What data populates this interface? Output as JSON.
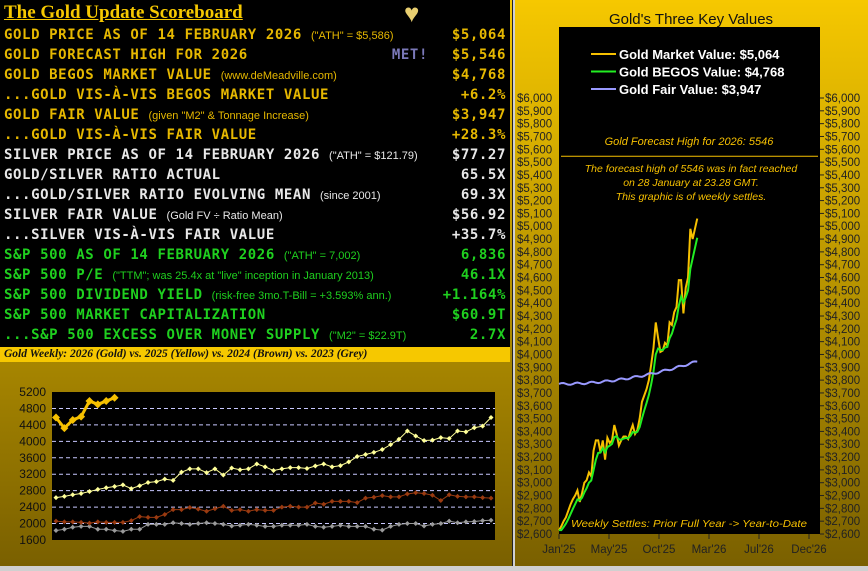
{
  "scoreboard": {
    "title": "The Gold Update Scoreboard",
    "heart_icon": "gold-heart-icon",
    "rows": [
      {
        "label": "GOLD PRICE AS OF 14 FEBRUARY 2026",
        "note": "(\"ATH\" = $5,586)",
        "value": "$5,064",
        "color": "gold"
      },
      {
        "label": "GOLD FORECAST HIGH FOR 2026",
        "note": "",
        "badge": "MET!",
        "value": "$5,546",
        "color": "gold"
      },
      {
        "label": "GOLD BEGOS MARKET VALUE",
        "note": "(www.deMeadville.com)",
        "value": "$4,768",
        "color": "gold",
        "link": true
      },
      {
        "label": "...GOLD VIS-À-VIS BEGOS MARKET VALUE",
        "note": "",
        "value": "+6.2%",
        "color": "gold"
      },
      {
        "label": "GOLD FAIR VALUE",
        "note": "(given \"M2\" & Tonnage Increase)",
        "value": "$3,947",
        "color": "gold"
      },
      {
        "label": "...GOLD VIS-À-VIS FAIR VALUE",
        "note": "",
        "value": "+28.3%",
        "color": "gold"
      },
      {
        "label": "SILVER PRICE AS OF 14 FEBRUARY 2026",
        "note": "(\"ATH\" = $121.79)",
        "value": "$77.27",
        "color": "white"
      },
      {
        "label": "GOLD/SILVER RATIO ACTUAL",
        "note": "",
        "value": "65.5X",
        "color": "white"
      },
      {
        "label": "...GOLD/SILVER RATIO EVOLVING MEAN",
        "note": "(since 2001)",
        "value": "69.3X",
        "color": "white"
      },
      {
        "label": "SILVER FAIR VALUE",
        "note": "(Gold FV ÷ Ratio Mean)",
        "value": "$56.92",
        "color": "white"
      },
      {
        "label": "...SILVER VIS-À-VIS FAIR VALUE",
        "note": "",
        "value": "+35.7%",
        "color": "white"
      },
      {
        "label": "S&P 500 AS OF 14 FEBRUARY 2026",
        "note": "(\"ATH\" = 7,002)",
        "value": "6,836",
        "color": "green"
      },
      {
        "label": "S&P 500 P/E",
        "note": "(\"TTM\"; was 25.4x at \"live\" inception in January 2013)",
        "value": "46.1X",
        "color": "green"
      },
      {
        "label": "S&P 500 DIVIDEND YIELD",
        "note": "(risk-free 3mo.T-Bill = +3.593% ann.)",
        "value": "+1.164%",
        "color": "green"
      },
      {
        "label": "S&P 500 MARKET CAPITALIZATION",
        "note": "",
        "value": "$60.9T",
        "color": "green"
      },
      {
        "label": "...S&P 500 EXCESS OVER MONEY SUPPLY",
        "note": "(\"M2\" = $22.9T)",
        "value": "2.7X",
        "color": "green"
      }
    ]
  },
  "weekly_title": "Gold Weekly:  2026 (Gold) vs. 2025 (Yellow) vs. 2024 (Brown) vs. 2023 (Grey)",
  "chart_data": [
    {
      "type": "line",
      "ylim": [
        1600,
        5200
      ],
      "yticks": [
        1600,
        2000,
        2400,
        2800,
        3200,
        3600,
        4000,
        4400,
        4800,
        5200
      ],
      "grid": true,
      "series": [
        {
          "year": "2026",
          "color": "#f6c000",
          "values": [
            4580,
            4320,
            4520,
            4600,
            4980,
            4900,
            4980,
            5060
          ]
        },
        {
          "year": "2025",
          "color": "#ffff99",
          "values": [
            2630,
            2660,
            2700,
            2730,
            2780,
            2830,
            2870,
            2900,
            2940,
            2850,
            2920,
            3000,
            3020,
            3080,
            3050,
            3250,
            3330,
            3330,
            3240,
            3330,
            3180,
            3350,
            3310,
            3330,
            3450,
            3380,
            3290,
            3330,
            3360,
            3360,
            3340,
            3400,
            3450,
            3380,
            3410,
            3500,
            3630,
            3680,
            3730,
            3800,
            3920,
            4050,
            4250,
            4130,
            4020,
            4030,
            4090,
            4070,
            4250,
            4230,
            4330,
            4370,
            4580
          ]
        },
        {
          "year": "2024",
          "color": "#9a3a10",
          "values": [
            2060,
            2040,
            2040,
            2030,
            2010,
            2040,
            2030,
            2030,
            2030,
            2070,
            2170,
            2150,
            2150,
            2220,
            2340,
            2340,
            2390,
            2350,
            2300,
            2360,
            2420,
            2320,
            2340,
            2300,
            2340,
            2320,
            2320,
            2400,
            2420,
            2400,
            2400,
            2500,
            2470,
            2540,
            2540,
            2540,
            2510,
            2620,
            2640,
            2680,
            2650,
            2650,
            2720,
            2750,
            2730,
            2690,
            2560,
            2700,
            2660,
            2650,
            2650,
            2630,
            2620
          ]
        },
        {
          "year": "2023",
          "color": "#9a9a9a",
          "values": [
            1830,
            1860,
            1910,
            1930,
            1930,
            1860,
            1860,
            1830,
            1810,
            1860,
            1860,
            1980,
            1980,
            1980,
            2020,
            2000,
            1980,
            2000,
            2020,
            2000,
            1980,
            1940,
            1960,
            1980,
            1960,
            1930,
            1930,
            1960,
            1960,
            1960,
            1980,
            1930,
            1910,
            1930,
            1960,
            1930,
            1930,
            1930,
            1860,
            1840,
            1930,
            1980,
            2000,
            2000,
            1940,
            1980,
            2000,
            2060,
            2020,
            2040,
            2050,
            2070,
            2080
          ]
        }
      ]
    },
    {
      "type": "line",
      "title": "Gold's Three Key Values",
      "ylim": [
        2600,
        6000
      ],
      "xticks": [
        "Jan'25",
        "May'25",
        "Oct'25",
        "Mar'26",
        "Jul'26",
        "Dec'26"
      ],
      "legend": [
        {
          "label": "Gold Market Value:  $5,064",
          "color": "#f6c000"
        },
        {
          "label": "Gold BEGOS Value:  $4,768",
          "color": "#22ee22"
        },
        {
          "label": "Gold Fair Value:  $3,947",
          "color": "#9999ff"
        }
      ],
      "forecast_label": "Gold Forecast High for 2026:  5546",
      "forecast_value": 5546,
      "annotation": [
        "The forecast high of 5546 was in fact reached",
        "on 28 January at 23.28 GMT.",
        "This graphic is of weekly settles."
      ],
      "footer": "Weekly Settles:  Prior Full Year -> Year-to-Date",
      "fair_value": {
        "start": 3770,
        "end": 3947
      }
    }
  ]
}
